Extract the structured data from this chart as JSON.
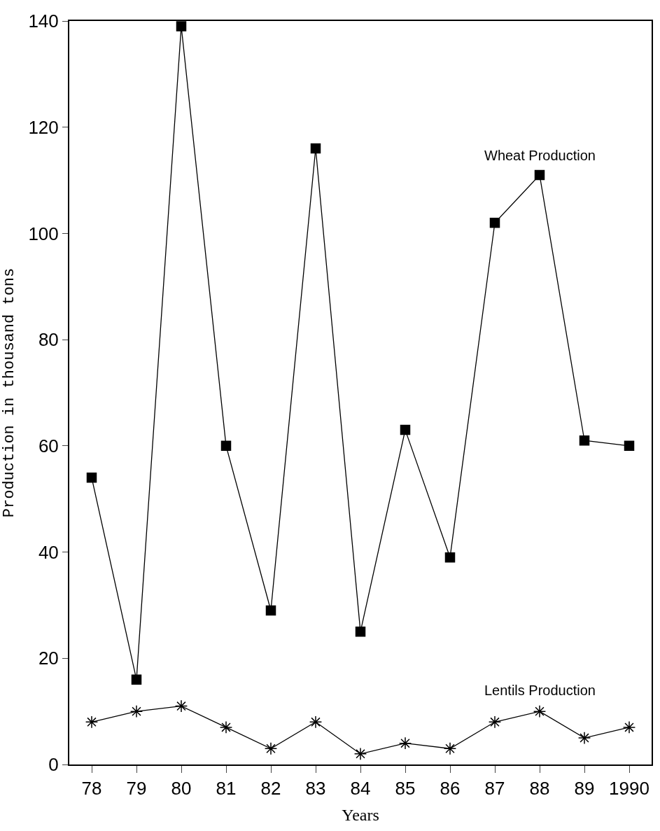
{
  "chart_data": {
    "type": "line",
    "xlabel": "Years",
    "ylabel": "Production in thousand tons",
    "categories": [
      "78",
      "79",
      "80",
      "81",
      "82",
      "83",
      "84",
      "85",
      "86",
      "87",
      "88",
      "89",
      "1990"
    ],
    "series": [
      {
        "name": "Wheat Production",
        "color": "#000000",
        "marker": "square",
        "values": [
          54,
          16,
          139,
          60,
          29,
          116,
          25,
          63,
          39,
          102,
          111,
          61,
          60
        ]
      },
      {
        "name": "Lentils Production",
        "color": "#000000",
        "marker": "cross",
        "values": [
          8,
          10,
          11,
          7,
          3,
          8,
          2,
          4,
          3,
          8,
          10,
          5,
          7
        ]
      }
    ],
    "ylim": [
      0,
      140
    ],
    "yticks": [
      0,
      20,
      40,
      60,
      80,
      100,
      120,
      140
    ],
    "legend": false,
    "line_style": "solid"
  }
}
